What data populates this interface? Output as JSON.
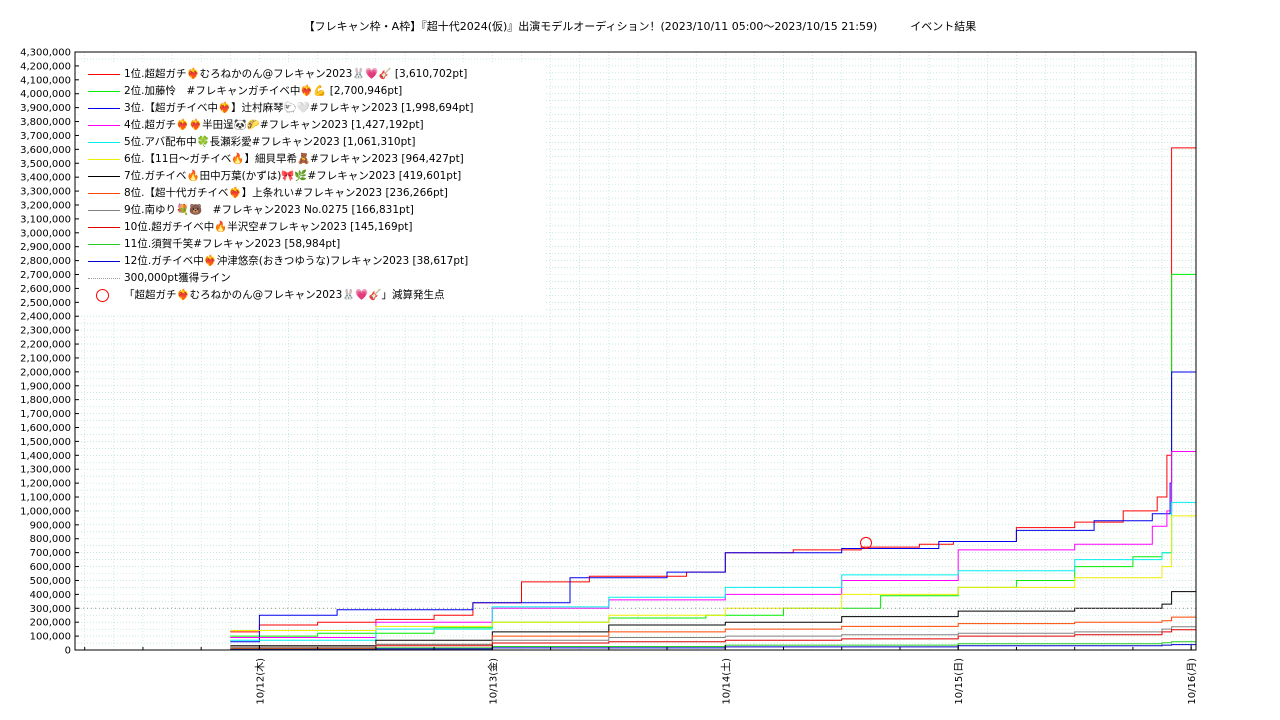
{
  "title": "【フレキャン枠・A枠】『超十代2024(仮)』出演モデルオーディション！(2023/10/11 05:00〜2023/10/15 21:59)　　　イベント結果",
  "chart_data": {
    "type": "line",
    "title": "【フレキャン枠・A枠】『超十代2024(仮)』出演モデルオーディション！(2023/10/11 05:00〜2023/10/15 21:59)　　　イベント結果",
    "xlabel": "",
    "ylabel": "",
    "ylim": [
      0,
      4300000
    ],
    "xlim": [
      "2023-10-11 05:00",
      "2023-10-16 00:30"
    ],
    "x_ticks": [
      {
        "label": "10/12(木)",
        "date": "2023-10-12 00:00"
      },
      {
        "label": "10/13(金)",
        "date": "2023-10-13 00:00"
      },
      {
        "label": "10/14(土)",
        "date": "2023-10-14 00:00"
      },
      {
        "label": "10/15(日)",
        "date": "2023-10-15 00:00"
      },
      {
        "label": "10/16(月)",
        "date": "2023-10-16 00:00"
      }
    ],
    "y_ticks": [
      "0",
      "100,000",
      "200,000",
      "300,000",
      "400,000",
      "500,000",
      "600,000",
      "700,000",
      "800,000",
      "900,000",
      "1,000,000",
      "1,100,000",
      "1,200,000",
      "1,300,000",
      "1,400,000",
      "1,500,000",
      "1,600,000",
      "1,700,000",
      "1,800,000",
      "1,900,000",
      "2,000,000",
      "2,100,000",
      "2,200,000",
      "2,300,000",
      "2,400,000",
      "2,500,000",
      "2,600,000",
      "2,700,000",
      "2,800,000",
      "2,900,000",
      "3,000,000",
      "3,100,000",
      "3,200,000",
      "3,300,000",
      "3,400,000",
      "3,500,000",
      "3,600,000",
      "3,700,000",
      "3,800,000",
      "3,900,000",
      "4,000,000",
      "4,100,000",
      "4,200,000",
      "4,300,000"
    ],
    "grid": true,
    "legend_position": "top-left",
    "series": [
      {
        "name": "1位.超超ガチ❤️‍🔥むろねかのん@フレキャン2023🐰💗🎸 [3,610,702pt]",
        "color": "#ff0000",
        "x": [
          "2023-10-11 21:00",
          "2023-10-12 00:00",
          "2023-10-12 06:00",
          "2023-10-12 12:00",
          "2023-10-12 18:00",
          "2023-10-12 22:00",
          "2023-10-13 03:00",
          "2023-10-13 10:00",
          "2023-10-13 20:00",
          "2023-10-14 00:00",
          "2023-10-14 07:00",
          "2023-10-14 14:00",
          "2023-10-14 20:00",
          "2023-10-14 23:30",
          "2023-10-15 06:00",
          "2023-10-15 12:00",
          "2023-10-15 17:00",
          "2023-10-15 20:30",
          "2023-10-15 21:30",
          "2023-10-15 21:59",
          "2023-10-16 00:30"
        ],
        "y": [
          130000,
          180000,
          200000,
          220000,
          250000,
          340000,
          490000,
          530000,
          560000,
          700000,
          720000,
          740000,
          760000,
          780000,
          880000,
          920000,
          1000000,
          1100000,
          1400000,
          3610702,
          3610702
        ]
      },
      {
        "name": "2位.加藤怜　#フレキャンガチイベ中❤️‍🔥💪 [2,700,946pt]",
        "color": "#00ee00",
        "x": [
          "2023-10-11 21:00",
          "2023-10-12 06:00",
          "2023-10-12 18:00",
          "2023-10-13 00:00",
          "2023-10-13 12:00",
          "2023-10-13 22:00",
          "2023-10-14 06:00",
          "2023-10-14 16:00",
          "2023-10-15 00:00",
          "2023-10-15 06:00",
          "2023-10-15 12:00",
          "2023-10-15 18:00",
          "2023-10-15 21:00",
          "2023-10-15 21:59",
          "2023-10-16 00:30"
        ],
        "y": [
          100000,
          120000,
          160000,
          200000,
          230000,
          250000,
          300000,
          390000,
          450000,
          500000,
          600000,
          670000,
          700000,
          2700946,
          2700946
        ]
      },
      {
        "name": "3位.【超ガチイベ中❤️‍🔥】辻村麻琴🐑🤍#フレキャン2023 [1,998,694pt]",
        "color": "#0000ee",
        "x": [
          "2023-10-11 21:00",
          "2023-10-12 00:00",
          "2023-10-12 08:00",
          "2023-10-12 22:00",
          "2023-10-13 08:00",
          "2023-10-13 18:00",
          "2023-10-14 00:00",
          "2023-10-14 12:00",
          "2023-10-14 22:00",
          "2023-10-15 06:00",
          "2023-10-15 14:00",
          "2023-10-15 20:00",
          "2023-10-15 21:50",
          "2023-10-15 21:59",
          "2023-10-16 00:30"
        ],
        "y": [
          60000,
          250000,
          290000,
          340000,
          520000,
          560000,
          700000,
          730000,
          780000,
          860000,
          930000,
          980000,
          1200000,
          1998694,
          1998694
        ]
      },
      {
        "name": "4位.超ガチ❤️‍🔥❤️‍🔥半田逞🐼🌮#フレキャン2023 [1,427,192pt]",
        "color": "#ff00ff",
        "x": [
          "2023-10-11 21:00",
          "2023-10-12 12:00",
          "2023-10-13 00:00",
          "2023-10-13 12:00",
          "2023-10-14 00:00",
          "2023-10-14 12:00",
          "2023-10-15 00:00",
          "2023-10-15 12:00",
          "2023-10-15 20:00",
          "2023-10-15 21:30",
          "2023-10-15 21:59",
          "2023-10-16 00:30"
        ],
        "y": [
          90000,
          200000,
          300000,
          360000,
          400000,
          500000,
          720000,
          760000,
          890000,
          1000000,
          1427192,
          1427192
        ]
      },
      {
        "name": "5位.アバ配布中🍀長瀬彩愛#フレキャン2023 [1,061,310pt]",
        "color": "#00eeee",
        "x": [
          "2023-10-11 21:00",
          "2023-10-12 12:00",
          "2023-10-13 00:00",
          "2023-10-13 12:00",
          "2023-10-14 00:00",
          "2023-10-14 12:00",
          "2023-10-15 00:00",
          "2023-10-15 12:00",
          "2023-10-15 21:00",
          "2023-10-15 21:59",
          "2023-10-16 00:30"
        ],
        "y": [
          70000,
          150000,
          310000,
          380000,
          450000,
          540000,
          570000,
          650000,
          700000,
          1061310,
          1061310
        ]
      },
      {
        "name": "6位.【11日〜ガチイベ🔥】細貝早希🧸#フレキャン2023 [964,427pt]",
        "color": "#eeee00",
        "x": [
          "2023-10-11 21:00",
          "2023-10-12 12:00",
          "2023-10-13 00:00",
          "2023-10-13 12:00",
          "2023-10-14 00:00",
          "2023-10-14 12:00",
          "2023-10-15 00:00",
          "2023-10-15 12:00",
          "2023-10-15 21:00",
          "2023-10-15 21:59",
          "2023-10-16 00:30"
        ],
        "y": [
          140000,
          170000,
          200000,
          250000,
          300000,
          400000,
          450000,
          520000,
          600000,
          964427,
          964427
        ]
      },
      {
        "name": "7位.ガチイベ🔥田中万葉(かずは)🎀🌿#フレキャン2023 [419,601pt]",
        "color": "#000000",
        "x": [
          "2023-10-11 21:00",
          "2023-10-12 12:00",
          "2023-10-13 00:00",
          "2023-10-13 12:00",
          "2023-10-14 00:00",
          "2023-10-14 12:00",
          "2023-10-15 00:00",
          "2023-10-15 12:00",
          "2023-10-15 21:00",
          "2023-10-15 21:59",
          "2023-10-16 00:30"
        ],
        "y": [
          30000,
          70000,
          130000,
          180000,
          200000,
          240000,
          280000,
          300000,
          330000,
          419601,
          419601
        ]
      },
      {
        "name": "8位.【超十代ガチイベ❤️‍🔥】上条れい#フレキャン2023 [236,266pt]",
        "color": "#ff4500",
        "x": [
          "2023-10-11 21:00",
          "2023-10-12 12:00",
          "2023-10-13 00:00",
          "2023-10-13 12:00",
          "2023-10-14 00:00",
          "2023-10-14 12:00",
          "2023-10-15 00:00",
          "2023-10-15 12:00",
          "2023-10-15 21:00",
          "2023-10-15 21:59",
          "2023-10-16 00:30"
        ],
        "y": [
          20000,
          40000,
          100000,
          130000,
          150000,
          170000,
          190000,
          200000,
          210000,
          236266,
          236266
        ]
      },
      {
        "name": "9位.南ゆり💐🐻　#フレキャン2023 No.0275 [166,831pt]",
        "color": "#808080",
        "x": [
          "2023-10-11 21:00",
          "2023-10-12 12:00",
          "2023-10-13 00:00",
          "2023-10-13 12:00",
          "2023-10-14 00:00",
          "2023-10-14 12:00",
          "2023-10-15 00:00",
          "2023-10-15 12:00",
          "2023-10-15 21:00",
          "2023-10-15 21:59",
          "2023-10-16 00:30"
        ],
        "y": [
          20000,
          40000,
          70000,
          90000,
          100000,
          110000,
          120000,
          130000,
          150000,
          166831,
          166831
        ]
      },
      {
        "name": "10位.超ガチイベ中🔥半沢空#フレキャン2023 [145,169pt]",
        "color": "#dd0000",
        "x": [
          "2023-10-11 21:00",
          "2023-10-12 12:00",
          "2023-10-13 00:00",
          "2023-10-13 12:00",
          "2023-10-14 00:00",
          "2023-10-14 12:00",
          "2023-10-15 00:00",
          "2023-10-15 12:00",
          "2023-10-15 21:00",
          "2023-10-15 21:59",
          "2023-10-16 00:30"
        ],
        "y": [
          10000,
          30000,
          50000,
          60000,
          70000,
          80000,
          100000,
          110000,
          130000,
          145169,
          145169
        ]
      },
      {
        "name": "11位.須賀千笑#フレキャン2023 [58,984pt]",
        "color": "#22cc22",
        "x": [
          "2023-10-11 21:00",
          "2023-10-12 12:00",
          "2023-10-13 00:00",
          "2023-10-14 00:00",
          "2023-10-15 00:00",
          "2023-10-15 21:00",
          "2023-10-15 21:59",
          "2023-10-16 00:30"
        ],
        "y": [
          5000,
          15000,
          25000,
          35000,
          45000,
          52000,
          58984,
          58984
        ]
      },
      {
        "name": "12位.ガチイベ中❤️‍🔥沖津悠奈(おきつゆうな)フレキャン2023 [38,617pt]",
        "color": "#0000cc",
        "x": [
          "2023-10-11 21:00",
          "2023-10-12 12:00",
          "2023-10-13 00:00",
          "2023-10-14 00:00",
          "2023-10-15 00:00",
          "2023-10-15 21:00",
          "2023-10-15 21:59",
          "2023-10-16 00:30"
        ],
        "y": [
          3000,
          8000,
          15000,
          22000,
          30000,
          35000,
          38617,
          38617
        ]
      }
    ],
    "reference_line": {
      "name": "300,000pt獲得ライン",
      "y": 300000,
      "color": "#999999"
    },
    "annotations": [
      {
        "name": "「超超ガチ❤️‍🔥むろねかのん@フレキャン2023🐰💗🎸」減算発生点",
        "x": "2023-10-14 14:30",
        "y": 770000,
        "color": "#ff0000",
        "marker": "circle"
      }
    ]
  }
}
